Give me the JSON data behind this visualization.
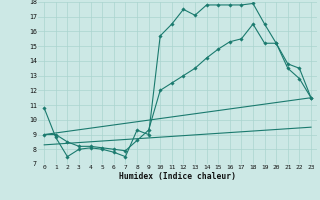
{
  "xlabel": "Humidex (Indice chaleur)",
  "xlim": [
    -0.5,
    23.5
  ],
  "ylim": [
    7,
    18
  ],
  "yticks": [
    7,
    8,
    9,
    10,
    11,
    12,
    13,
    14,
    15,
    16,
    17,
    18
  ],
  "xticks": [
    0,
    1,
    2,
    3,
    4,
    5,
    6,
    7,
    8,
    9,
    10,
    11,
    12,
    13,
    14,
    15,
    16,
    17,
    18,
    19,
    20,
    21,
    22,
    23
  ],
  "bg_color": "#cce8e5",
  "line_color": "#1a7a6e",
  "grid_color": "#aad4cf",
  "line1_x": [
    0,
    1,
    2,
    3,
    4,
    5,
    6,
    7,
    8,
    9,
    10,
    11,
    12,
    13,
    14,
    15,
    16,
    17,
    18,
    19,
    20,
    21,
    22,
    23
  ],
  "line1_y": [
    10.8,
    8.8,
    7.5,
    8.0,
    8.1,
    8.0,
    7.8,
    7.5,
    9.3,
    9.0,
    15.7,
    16.5,
    17.5,
    17.1,
    17.8,
    17.8,
    17.8,
    17.8,
    17.9,
    16.5,
    15.2,
    13.5,
    12.8,
    11.5
  ],
  "line2_x": [
    0,
    1,
    2,
    3,
    4,
    5,
    6,
    7,
    8,
    9,
    10,
    11,
    12,
    13,
    14,
    15,
    16,
    17,
    18,
    19,
    20,
    21,
    22,
    23
  ],
  "line2_y": [
    9.0,
    9.0,
    8.5,
    8.2,
    8.2,
    8.1,
    8.0,
    7.9,
    8.6,
    9.3,
    12.0,
    12.5,
    13.0,
    13.5,
    14.2,
    14.8,
    15.3,
    15.5,
    16.5,
    15.2,
    15.2,
    13.8,
    13.5,
    11.5
  ],
  "line3_x": [
    0,
    23
  ],
  "line3_y": [
    9.0,
    11.5
  ],
  "line4_x": [
    0,
    23
  ],
  "line4_y": [
    8.3,
    9.5
  ]
}
